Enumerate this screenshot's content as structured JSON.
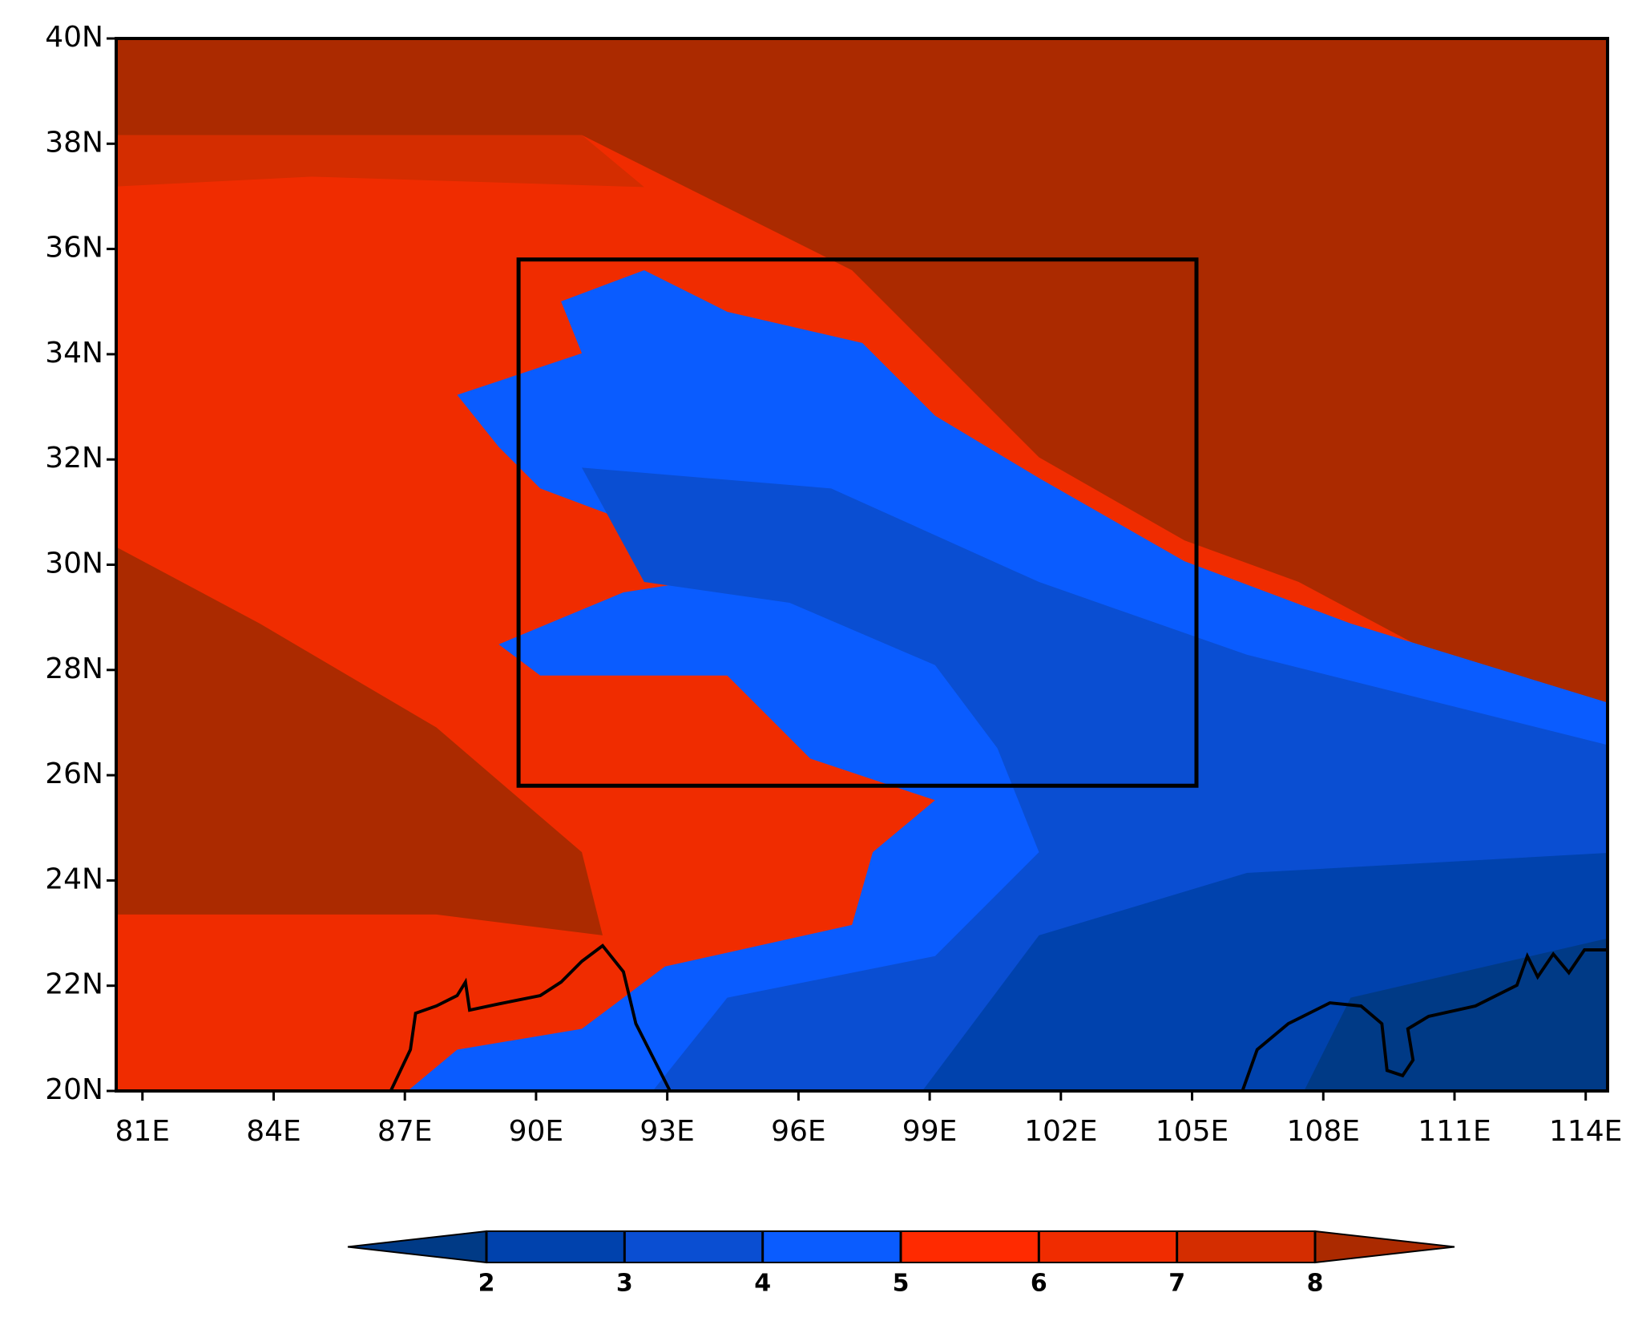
{
  "map": {
    "xlim": [
      80.4,
      114.5
    ],
    "ylim": [
      20,
      40
    ],
    "xticks": [
      {
        "value": 81,
        "label": "81E"
      },
      {
        "value": 84,
        "label": "84E"
      },
      {
        "value": 87,
        "label": "87E"
      },
      {
        "value": 90,
        "label": "90E"
      },
      {
        "value": 93,
        "label": "93E"
      },
      {
        "value": 96,
        "label": "96E"
      },
      {
        "value": 99,
        "label": "99E"
      },
      {
        "value": 102,
        "label": "102E"
      },
      {
        "value": 105,
        "label": "105E"
      },
      {
        "value": 108,
        "label": "108E"
      },
      {
        "value": 111,
        "label": "111E"
      },
      {
        "value": 114,
        "label": "114E"
      }
    ],
    "yticks": [
      {
        "value": 20,
        "label": "20N"
      },
      {
        "value": 22,
        "label": "22N"
      },
      {
        "value": 24,
        "label": "24N"
      },
      {
        "value": 26,
        "label": "26N"
      },
      {
        "value": 28,
        "label": "28N"
      },
      {
        "value": 30,
        "label": "30N"
      },
      {
        "value": 32,
        "label": "32N"
      },
      {
        "value": 34,
        "label": "34N"
      },
      {
        "value": 36,
        "label": "36N"
      },
      {
        "value": 38,
        "label": "38N"
      },
      {
        "value": 40,
        "label": "40N"
      }
    ],
    "box": {
      "lon": [
        89.6,
        105.1
      ],
      "lat": [
        25.8,
        35.8
      ]
    },
    "colorbar": {
      "levels": [
        2,
        3,
        4,
        5,
        6,
        7,
        8
      ],
      "colors": [
        "#003a86",
        "#0042ad",
        "#0a4ed2",
        "#0a5cff",
        "#ff2a00",
        "#f02c00",
        "#d42d00",
        "#ab2a00"
      ]
    }
  }
}
